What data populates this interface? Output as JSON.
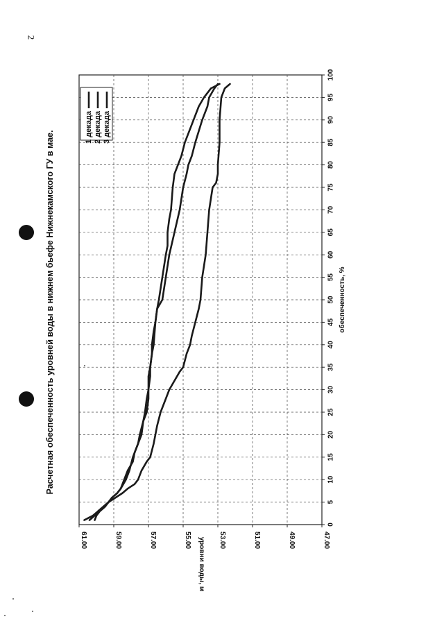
{
  "page": {
    "page_number": "2"
  },
  "chart_data": {
    "type": "line",
    "title": "Расчетная обеспеченность уровней воды в нижнем бьефе Нижнекамского ГУ в мае.",
    "xlabel": "обеспеченность, %",
    "ylabel": "уровни воды, м",
    "xlim": [
      0,
      100
    ],
    "ylim": [
      47.0,
      61.0
    ],
    "x_ticks": [
      "0",
      "5",
      "10",
      "15",
      "20",
      "25",
      "30",
      "35",
      "40",
      "45",
      "50",
      "55",
      "60",
      "65",
      "70",
      "75",
      "80",
      "85",
      "90",
      "95",
      "100"
    ],
    "y_ticks": [
      "61.00",
      "59.00",
      "57.00",
      "55.00",
      "53.00",
      "51.00",
      "49.00",
      "47.00"
    ],
    "grid": true,
    "legend_position": "top-right",
    "series": [
      {
        "name": "1 декада",
        "color": "#1a1a1a",
        "x": [
          1,
          2,
          3,
          4,
          5,
          6,
          7,
          8,
          9,
          10,
          12,
          14,
          15,
          18,
          20,
          22,
          25,
          28,
          30,
          32,
          34,
          35,
          38,
          40,
          42,
          45,
          48,
          50,
          55,
          60,
          65,
          70,
          75,
          76,
          78,
          80,
          85,
          90,
          95,
          97,
          98
        ],
        "y": [
          60.7,
          60.2,
          59.9,
          59.6,
          59.3,
          58.9,
          58.5,
          58.2,
          57.8,
          57.6,
          57.4,
          57.1,
          56.9,
          56.7,
          56.6,
          56.5,
          56.3,
          56.0,
          55.8,
          55.5,
          55.2,
          55.0,
          54.8,
          54.6,
          54.5,
          54.3,
          54.1,
          54.0,
          53.9,
          53.7,
          53.6,
          53.5,
          53.3,
          53.1,
          53.0,
          53.0,
          52.9,
          52.9,
          52.8,
          52.6,
          52.3
        ]
      },
      {
        "name": "2 декада",
        "color": "#1a1a1a",
        "x": [
          1,
          2,
          3,
          4,
          5,
          6,
          7,
          8,
          10,
          12,
          15,
          18,
          20,
          23,
          25,
          28,
          30,
          33,
          35,
          38,
          40,
          43,
          45,
          48,
          50,
          55,
          60,
          65,
          70,
          75,
          78,
          80,
          82,
          85,
          90,
          93,
          95,
          97,
          98
        ],
        "y": [
          60.1,
          60.0,
          59.8,
          59.5,
          59.3,
          59.1,
          58.8,
          58.6,
          58.3,
          58.1,
          57.9,
          57.6,
          57.4,
          57.3,
          57.1,
          57.0,
          57.0,
          56.9,
          56.9,
          56.8,
          56.8,
          56.7,
          56.6,
          56.5,
          56.2,
          56.0,
          55.8,
          55.5,
          55.2,
          55.0,
          54.8,
          54.7,
          54.5,
          54.3,
          53.9,
          53.6,
          53.5,
          53.2,
          53.0
        ]
      },
      {
        "name": "3 декада",
        "color": "#1a1a1a",
        "x": [
          1,
          2,
          3,
          4,
          5,
          6,
          7,
          8,
          10,
          12,
          14,
          16,
          18,
          20,
          23,
          25,
          28,
          30,
          33,
          35,
          38,
          40,
          45,
          48,
          50,
          55,
          60,
          62,
          65,
          68,
          70,
          75,
          78,
          80,
          82,
          85,
          88,
          90,
          93,
          95,
          97,
          98
        ],
        "y": [
          60.4,
          60.1,
          59.9,
          59.6,
          59.3,
          59.1,
          58.8,
          58.6,
          58.4,
          58.2,
          57.9,
          57.8,
          57.6,
          57.5,
          57.3,
          57.2,
          57.1,
          57.0,
          57.0,
          56.9,
          56.8,
          56.7,
          56.6,
          56.5,
          56.4,
          56.2,
          56.0,
          55.9,
          55.9,
          55.8,
          55.7,
          55.6,
          55.5,
          55.3,
          55.1,
          54.9,
          54.6,
          54.4,
          54.1,
          53.8,
          53.4,
          52.9
        ]
      }
    ]
  }
}
